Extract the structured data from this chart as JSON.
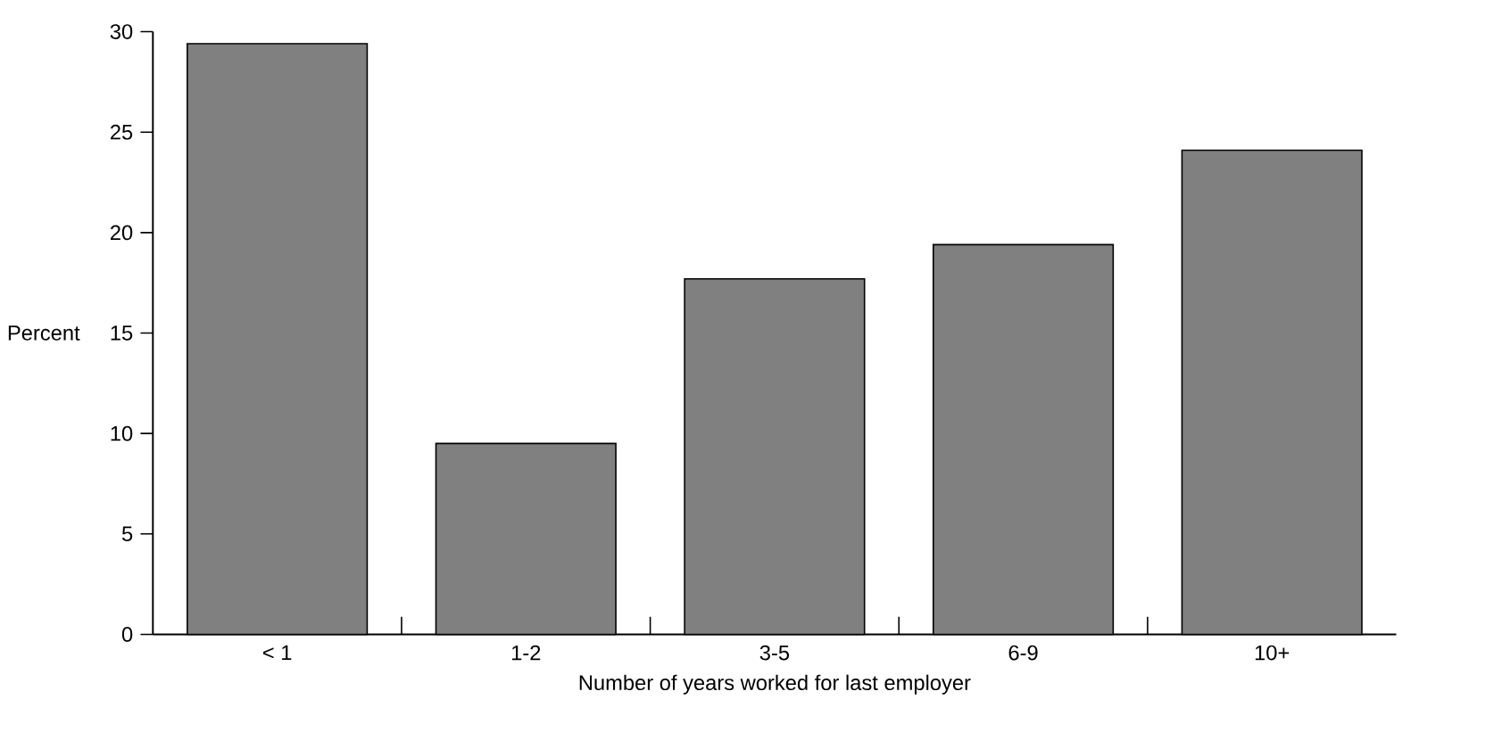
{
  "chart_data": {
    "type": "bar",
    "xlabel": "Number of years worked for last employer",
    "ylabel": "Percent",
    "categories": [
      "< 1",
      "1-2",
      "3-5",
      "6-9",
      "10+"
    ],
    "values": [
      29.4,
      9.5,
      17.7,
      19.4,
      24.1
    ],
    "color": "#808080",
    "ylim": [
      0,
      30
    ],
    "yticks": [
      0,
      5,
      10,
      15,
      20,
      25,
      30
    ]
  }
}
